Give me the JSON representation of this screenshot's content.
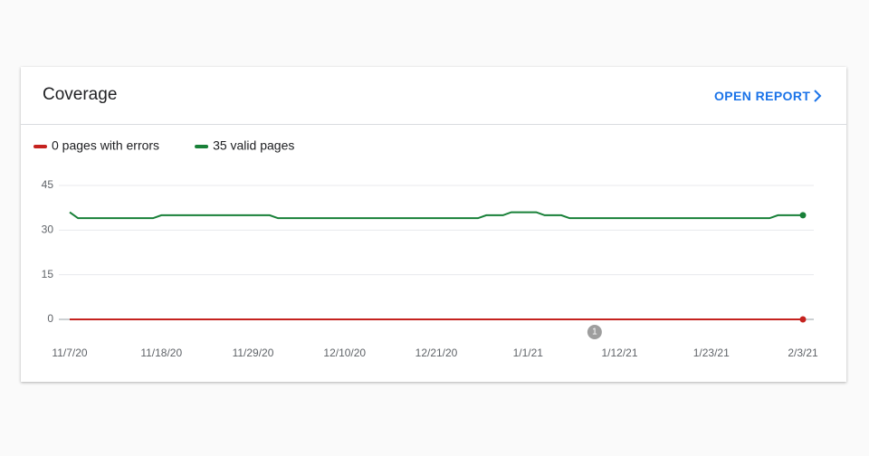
{
  "card": {
    "title": "Coverage",
    "link": "OPEN REPORT"
  },
  "chart_data": {
    "type": "line",
    "x": [
      "11/7/20",
      "11/8/20",
      "11/9/20",
      "11/10/20",
      "11/11/20",
      "11/12/20",
      "11/13/20",
      "11/14/20",
      "11/15/20",
      "11/16/20",
      "11/17/20",
      "11/18/20",
      "11/19/20",
      "11/20/20",
      "11/21/20",
      "11/22/20",
      "11/23/20",
      "11/24/20",
      "11/25/20",
      "11/26/20",
      "11/27/20",
      "11/28/20",
      "11/29/20",
      "11/30/20",
      "12/1/20",
      "12/2/20",
      "12/3/20",
      "12/4/20",
      "12/5/20",
      "12/6/20",
      "12/7/20",
      "12/8/20",
      "12/9/20",
      "12/10/20",
      "12/11/20",
      "12/12/20",
      "12/13/20",
      "12/14/20",
      "12/15/20",
      "12/16/20",
      "12/17/20",
      "12/18/20",
      "12/19/20",
      "12/20/20",
      "12/21/20",
      "12/22/20",
      "12/23/20",
      "12/24/20",
      "12/25/20",
      "12/26/20",
      "12/27/20",
      "12/28/20",
      "12/29/20",
      "12/30/20",
      "12/31/20",
      "1/1/21",
      "1/2/21",
      "1/3/21",
      "1/4/21",
      "1/5/21",
      "1/6/21",
      "1/7/21",
      "1/8/21",
      "1/9/21",
      "1/10/21",
      "1/11/21",
      "1/12/21",
      "1/13/21",
      "1/14/21",
      "1/15/21",
      "1/16/21",
      "1/17/21",
      "1/18/21",
      "1/19/21",
      "1/20/21",
      "1/21/21",
      "1/22/21",
      "1/23/21",
      "1/24/21",
      "1/25/21",
      "1/26/21",
      "1/27/21",
      "1/28/21",
      "1/29/21",
      "1/30/21",
      "1/31/21",
      "2/1/21",
      "2/2/21",
      "2/3/21"
    ],
    "series": [
      {
        "name": "0 pages with errors",
        "color": "#c5221f",
        "values": [
          0,
          0,
          0,
          0,
          0,
          0,
          0,
          0,
          0,
          0,
          0,
          0,
          0,
          0,
          0,
          0,
          0,
          0,
          0,
          0,
          0,
          0,
          0,
          0,
          0,
          0,
          0,
          0,
          0,
          0,
          0,
          0,
          0,
          0,
          0,
          0,
          0,
          0,
          0,
          0,
          0,
          0,
          0,
          0,
          0,
          0,
          0,
          0,
          0,
          0,
          0,
          0,
          0,
          0,
          0,
          0,
          0,
          0,
          0,
          0,
          0,
          0,
          0,
          0,
          0,
          0,
          0,
          0,
          0,
          0,
          0,
          0,
          0,
          0,
          0,
          0,
          0,
          0,
          0,
          0,
          0,
          0,
          0,
          0,
          0,
          0,
          0,
          0,
          0
        ]
      },
      {
        "name": "35 valid pages",
        "color": "#188038",
        "values": [
          36,
          34,
          34,
          34,
          34,
          34,
          34,
          34,
          34,
          34,
          34,
          35,
          35,
          35,
          35,
          35,
          35,
          35,
          35,
          35,
          35,
          35,
          35,
          35,
          35,
          34,
          34,
          34,
          34,
          34,
          34,
          34,
          34,
          34,
          34,
          34,
          34,
          34,
          34,
          34,
          34,
          34,
          34,
          34,
          34,
          34,
          34,
          34,
          34,
          34,
          35,
          35,
          35,
          36,
          36,
          36,
          36,
          35,
          35,
          35,
          34,
          34,
          34,
          34,
          34,
          34,
          34,
          34,
          34,
          34,
          34,
          34,
          34,
          34,
          34,
          34,
          34,
          34,
          34,
          34,
          34,
          34,
          34,
          34,
          34,
          35,
          35,
          35,
          35
        ]
      }
    ],
    "ylim": [
      0,
      45
    ],
    "yticks": [
      0,
      15,
      30,
      45
    ],
    "xticks": [
      "11/7/20",
      "11/18/20",
      "11/29/20",
      "12/10/20",
      "12/21/20",
      "1/1/21",
      "1/12/21",
      "1/23/21",
      "2/3/21"
    ],
    "grid": true,
    "annotations": [
      {
        "x": "1/9/21",
        "label": "1"
      }
    ]
  }
}
